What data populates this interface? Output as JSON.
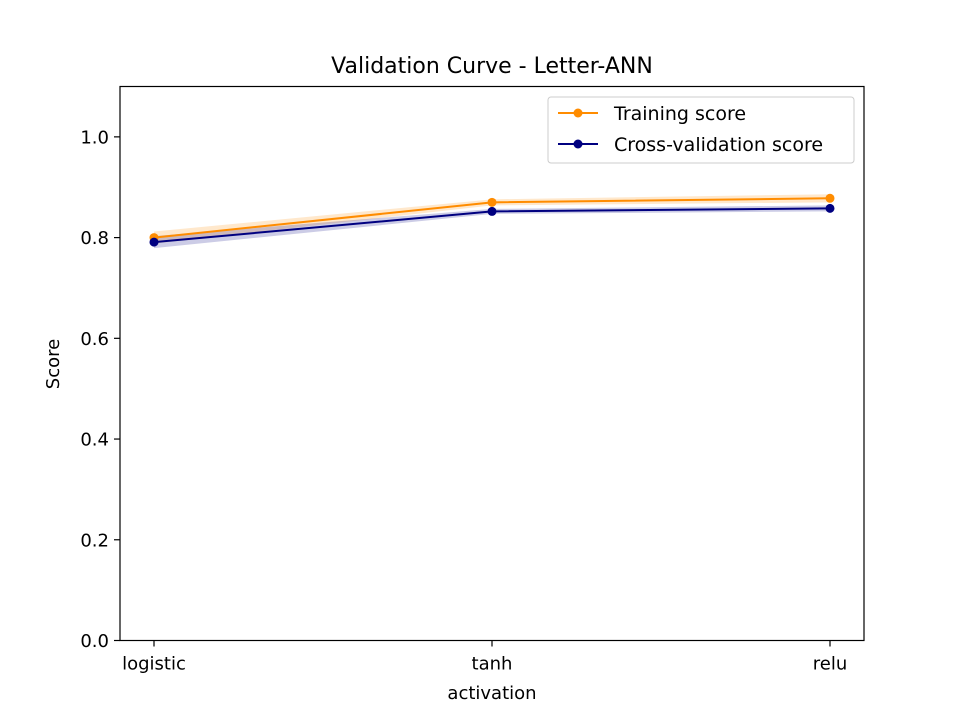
{
  "chart_data": {
    "type": "line",
    "title": "Validation Curve - Letter-ANN",
    "xlabel": "activation",
    "ylabel": "Score",
    "categories": [
      "logistic",
      "tanh",
      "relu"
    ],
    "ylim": [
      0.0,
      1.1
    ],
    "yticks": [
      "0.0",
      "0.2",
      "0.4",
      "0.6",
      "0.8",
      "1.0"
    ],
    "grid": false,
    "legend_position": "top-right",
    "series": [
      {
        "name": "Training score",
        "color": "#ff8c00",
        "values": [
          0.8,
          0.87,
          0.878
        ],
        "std": [
          0.012,
          0.006,
          0.008
        ]
      },
      {
        "name": "Cross-validation score",
        "color": "#000080",
        "values": [
          0.791,
          0.852,
          0.858
        ],
        "std": [
          0.012,
          0.005,
          0.006
        ]
      }
    ]
  }
}
